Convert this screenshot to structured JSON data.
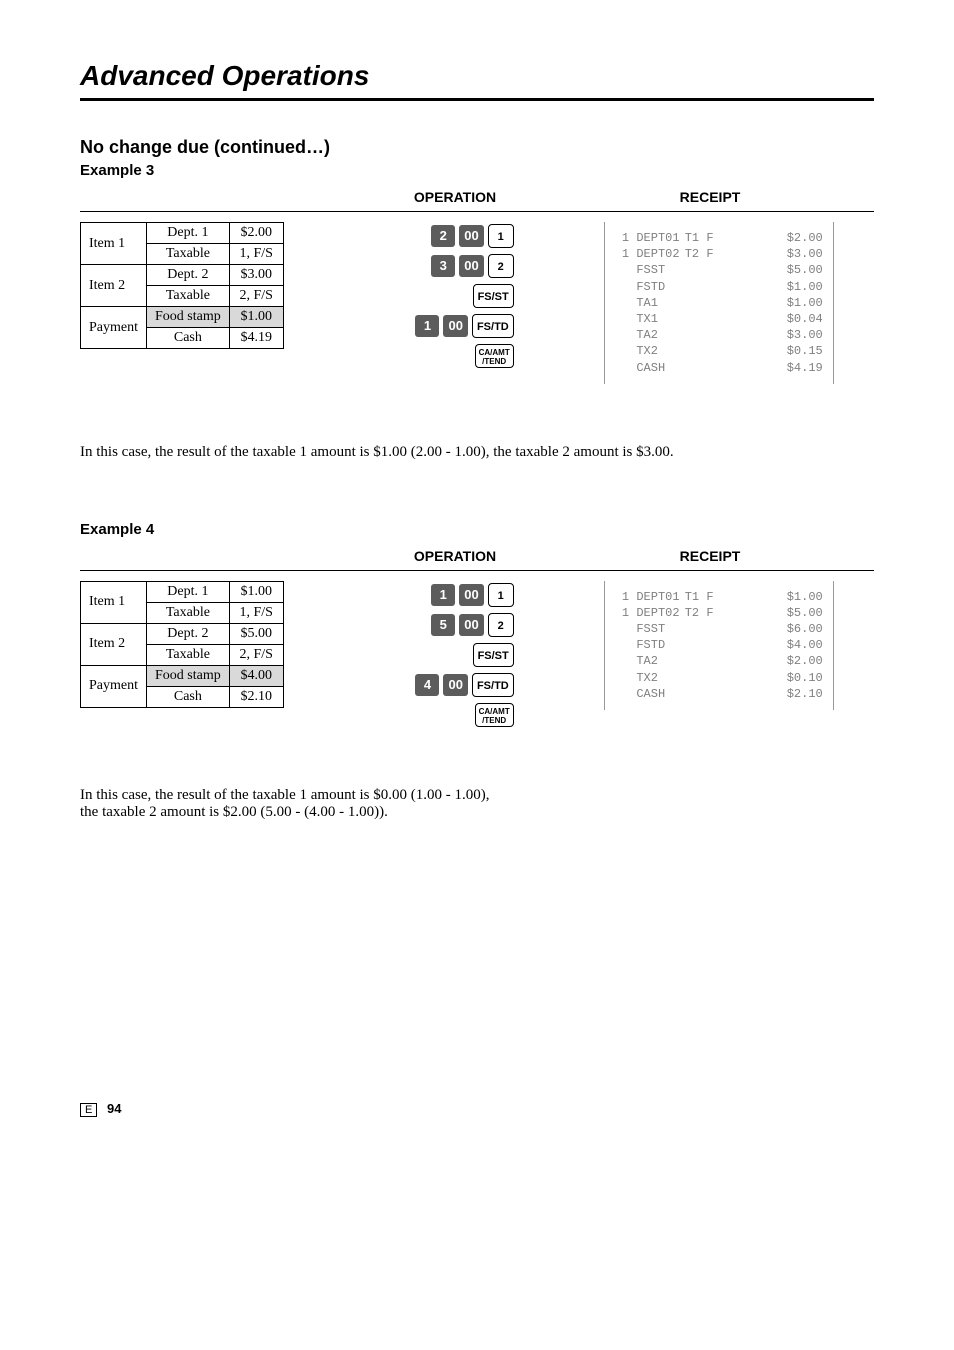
{
  "chapter_title": "Advanced Operations",
  "section_title": "No change due (continued…)",
  "col_headers": {
    "operation": "OPERATION",
    "receipt": "RECEIPT"
  },
  "example3": {
    "label": "Example 3",
    "rows": [
      {
        "name": "Item 1",
        "c1": "Dept. 1",
        "c2": "$2.00",
        "shaded": false
      },
      {
        "name": "",
        "c1": "Taxable",
        "c2": "1, F/S",
        "shaded": false
      },
      {
        "name": "Item 2",
        "c1": "Dept. 2",
        "c2": "$3.00",
        "shaded": false
      },
      {
        "name": "",
        "c1": "Taxable",
        "c2": "2, F/S",
        "shaded": false
      },
      {
        "name": "Payment",
        "c1": "Food stamp",
        "c2": "$1.00",
        "shaded": true
      },
      {
        "name": "",
        "c1": "Cash",
        "c2": "$4.19",
        "shaded": false
      }
    ],
    "ops": [
      {
        "dark": [
          "2",
          "00"
        ],
        "light": "1"
      },
      {
        "dark": [
          "3",
          "00"
        ],
        "light": "2"
      },
      {
        "dark": [],
        "light": "FS/ST"
      },
      {
        "dark": [
          "1",
          "00"
        ],
        "light": "FS/TD"
      },
      {
        "dark": [],
        "light_multi": [
          "CA/AMT",
          "/TEND"
        ]
      }
    ],
    "receipt": [
      {
        "c1": " 1 DEPT01",
        "c2": "T1 F",
        "c3": "$2.00"
      },
      {
        "c1": " 1 DEPT02",
        "c2": "T2 F",
        "c3": "$3.00"
      },
      {
        "c1": "   FSST",
        "c2": "",
        "c3": "$5.00"
      },
      {
        "c1": "   FSTD",
        "c2": "",
        "c3": "$1.00"
      },
      {
        "c1": "   TA1",
        "c2": "",
        "c3": "$1.00"
      },
      {
        "c1": "   TX1",
        "c2": "",
        "c3": "$0.04"
      },
      {
        "c1": "   TA2",
        "c2": "",
        "c3": "$3.00"
      },
      {
        "c1": "   TX2",
        "c2": "",
        "c3": "$0.15"
      },
      {
        "c1": "   CASH",
        "c2": "",
        "c3": "$4.19"
      }
    ],
    "note": "In this case, the result of the taxable 1 amount is $1.00 (2.00 - 1.00), the taxable 2 amount is $3.00."
  },
  "example4": {
    "label": "Example 4",
    "rows": [
      {
        "name": "Item 1",
        "c1": "Dept. 1",
        "c2": "$1.00",
        "shaded": false
      },
      {
        "name": "",
        "c1": "Taxable",
        "c2": "1, F/S",
        "shaded": false
      },
      {
        "name": "Item 2",
        "c1": "Dept. 2",
        "c2": "$5.00",
        "shaded": false
      },
      {
        "name": "",
        "c1": "Taxable",
        "c2": "2, F/S",
        "shaded": false
      },
      {
        "name": "Payment",
        "c1": "Food stamp",
        "c2": "$4.00",
        "shaded": true
      },
      {
        "name": "",
        "c1": "Cash",
        "c2": "$2.10",
        "shaded": false
      }
    ],
    "ops": [
      {
        "dark": [
          "1",
          "00"
        ],
        "light": "1"
      },
      {
        "dark": [
          "5",
          "00"
        ],
        "light": "2"
      },
      {
        "dark": [],
        "light": "FS/ST"
      },
      {
        "dark": [
          "4",
          "00"
        ],
        "light": "FS/TD"
      },
      {
        "dark": [],
        "light_multi": [
          "CA/AMT",
          "/TEND"
        ]
      }
    ],
    "receipt": [
      {
        "c1": " 1 DEPT01",
        "c2": "T1 F",
        "c3": "$1.00"
      },
      {
        "c1": " 1 DEPT02",
        "c2": "T2 F",
        "c3": "$5.00"
      },
      {
        "c1": "   FSST",
        "c2": "",
        "c3": "$6.00"
      },
      {
        "c1": "   FSTD",
        "c2": "",
        "c3": "$4.00"
      },
      {
        "c1": "   TA2",
        "c2": "",
        "c3": "$2.00"
      },
      {
        "c1": "   TX2",
        "c2": "",
        "c3": "$0.10"
      },
      {
        "c1": "   CASH",
        "c2": "",
        "c3": "$2.10"
      }
    ],
    "note_line1": "In this case, the result of the taxable 1 amount is $0.00 (1.00 - 1.00),",
    "note_line2": "the taxable 2 amount is $2.00 (5.00 - (4.00 - 1.00))."
  },
  "footer": {
    "e": "E",
    "page": "94"
  }
}
